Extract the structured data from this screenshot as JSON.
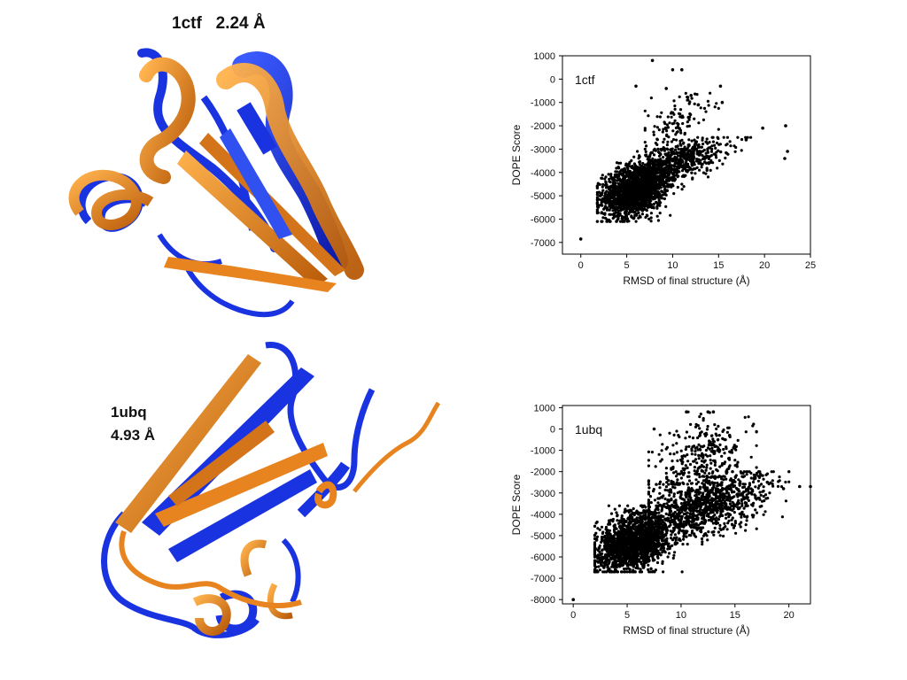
{
  "figure": {
    "panel_1ctf": {
      "name": "1ctf",
      "rmsd": "2.24 Å"
    },
    "panel_1ubq": {
      "name": "1ubq",
      "rmsd": "4.93 Å"
    },
    "colors": {
      "model": "#f08a24",
      "native": "#1a33e0",
      "points": "#000000"
    }
  },
  "chart_data": [
    {
      "type": "scatter",
      "title": "1ctf",
      "xlabel": "RMSD of final structure (Å)",
      "ylabel": "DOPE Score",
      "xlim": [
        -2,
        25
      ],
      "ylim": [
        -7500,
        1000
      ],
      "xticks": [
        0,
        5,
        10,
        15,
        20,
        25
      ],
      "yticks": [
        1000,
        0,
        -1000,
        -2000,
        -3000,
        -4000,
        -5000,
        -6000,
        -7000
      ],
      "grid": false,
      "point_clouds": [
        {
          "n": 1900,
          "x_mean": 6.0,
          "x_sd": 1.8,
          "y_mean": -4700,
          "y_sd": 550,
          "x_min": 1.8,
          "x_max": 12.0,
          "y_min": -6100,
          "y_max": -2700
        },
        {
          "n": 500,
          "x_mean": 11.0,
          "x_sd": 2.5,
          "y_mean": -3500,
          "y_sd": 400,
          "x_min": 7.5,
          "x_max": 18.5,
          "y_min": -4600,
          "y_max": -2500
        },
        {
          "n": 120,
          "x_mean": 10.5,
          "x_sd": 1.8,
          "y_mean": -1900,
          "y_sd": 600,
          "x_min": 7.0,
          "x_max": 15.0,
          "y_min": -3000,
          "y_max": -600
        }
      ],
      "points": [
        [
          0,
          -6850
        ],
        [
          7.8,
          800
        ],
        [
          10,
          400
        ],
        [
          11,
          400
        ],
        [
          9.3,
          -400
        ],
        [
          15.2,
          -300
        ],
        [
          6.0,
          -300
        ],
        [
          15.4,
          -1000
        ],
        [
          22.3,
          -2000
        ],
        [
          22.5,
          -3100
        ],
        [
          22.2,
          -3400
        ],
        [
          19.8,
          -2100
        ],
        [
          18.0,
          -2600
        ],
        [
          12.0,
          -700
        ],
        [
          12.8,
          -1100
        ]
      ]
    },
    {
      "type": "scatter",
      "title": "1ubq",
      "xlabel": "RMSD of final structure (Å)",
      "ylabel": "DOPE Score",
      "xlim": [
        -1,
        22
      ],
      "ylim": [
        -8200,
        1100
      ],
      "xticks": [
        0,
        5,
        10,
        15,
        20
      ],
      "yticks": [
        1000,
        0,
        -1000,
        -2000,
        -3000,
        -4000,
        -5000,
        -6000,
        -7000,
        -8000
      ],
      "grid": false,
      "point_clouds": [
        {
          "n": 1800,
          "x_mean": 5.5,
          "x_sd": 1.7,
          "y_mean": -5300,
          "y_sd": 650,
          "x_min": 2.0,
          "x_max": 11.0,
          "y_min": -6700,
          "y_max": -3600
        },
        {
          "n": 1100,
          "x_mean": 12.0,
          "x_sd": 3.0,
          "y_mean": -3600,
          "y_sd": 700,
          "x_min": 7.0,
          "x_max": 20.0,
          "y_min": -5400,
          "y_max": -2000
        },
        {
          "n": 300,
          "x_mean": 12.0,
          "x_sd": 2.2,
          "y_mean": -1200,
          "y_sd": 800,
          "x_min": 7.0,
          "x_max": 17.0,
          "y_min": -2600,
          "y_max": 800
        }
      ],
      "points": [
        [
          0,
          -8000
        ],
        [
          12.5,
          800
        ],
        [
          13,
          800
        ],
        [
          10.5,
          800
        ],
        [
          7.5,
          0
        ],
        [
          19.5,
          -2800
        ],
        [
          21,
          -2700
        ],
        [
          22,
          -2700
        ],
        [
          18,
          -2500
        ],
        [
          14.5,
          -300
        ]
      ]
    }
  ]
}
